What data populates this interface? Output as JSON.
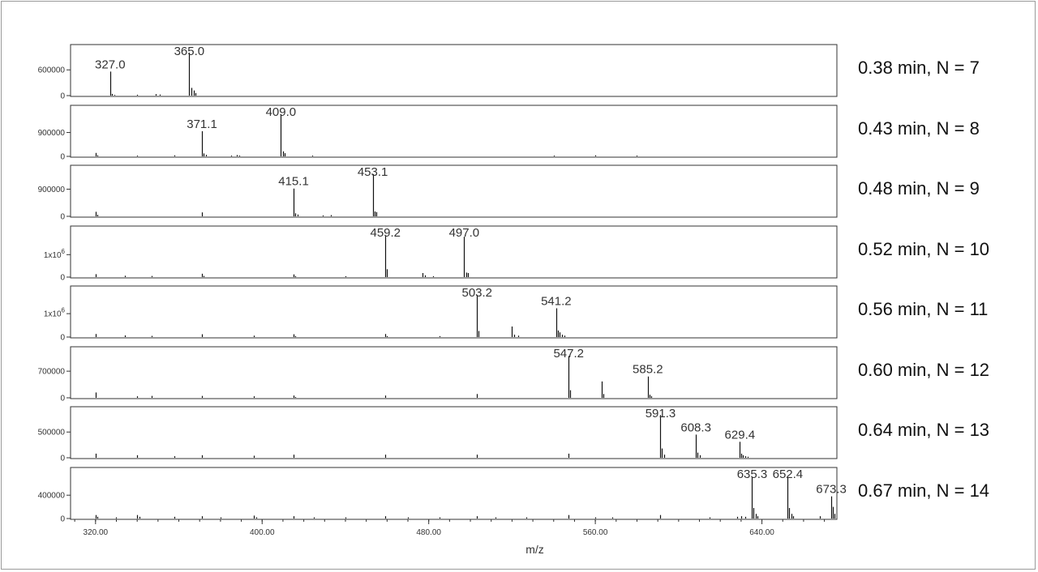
{
  "chart_data": {
    "type": "bar",
    "xlabel": "m/z",
    "xlim": [
      308,
      676
    ],
    "x_ticks": [
      "320.00",
      "400.00",
      "480.00",
      "560.00",
      "640.00"
    ],
    "x_tick_values": [
      320,
      400,
      480,
      560,
      640
    ],
    "panels": [
      {
        "annotation": "0.38 min, N = 7",
        "y_ticks": [
          {
            "value": 0,
            "label": "0"
          },
          {
            "value": 600000,
            "label": "600000"
          }
        ],
        "ymax": 1020000,
        "peak_labels": [
          {
            "x": 327.0,
            "label": "327.0"
          },
          {
            "x": 365.0,
            "label": "365.0"
          }
        ],
        "peaks": [
          [
            327.0,
            560000
          ],
          [
            328.0,
            40000
          ],
          [
            329.0,
            15000
          ],
          [
            340.0,
            20000
          ],
          [
            349.0,
            35000
          ],
          [
            351.0,
            25000
          ],
          [
            365.0,
            1000000
          ],
          [
            366.0,
            180000
          ],
          [
            367.0,
            120000
          ],
          [
            368.0,
            60000
          ]
        ]
      },
      {
        "annotation": "0.43 min, N = 8",
        "y_ticks": [
          {
            "value": 0,
            "label": "0"
          },
          {
            "value": 900000,
            "label": "900000"
          }
        ],
        "ymax": 1650000,
        "peak_labels": [
          {
            "x": 371.1,
            "label": "371.1"
          },
          {
            "x": 409.0,
            "label": "409.0"
          }
        ],
        "peaks": [
          [
            320.0,
            130000
          ],
          [
            321.0,
            40000
          ],
          [
            340.0,
            30000
          ],
          [
            358.0,
            40000
          ],
          [
            371.1,
            950000
          ],
          [
            372.0,
            110000
          ],
          [
            373.0,
            60000
          ],
          [
            385.0,
            30000
          ],
          [
            388.0,
            50000
          ],
          [
            389.0,
            30000
          ],
          [
            409.0,
            1580000
          ],
          [
            410.0,
            190000
          ],
          [
            411.0,
            120000
          ],
          [
            424.0,
            30000
          ],
          [
            540.0,
            30000
          ],
          [
            560.0,
            40000
          ],
          [
            580.0,
            30000
          ]
        ]
      },
      {
        "annotation": "0.48 min, N = 9",
        "y_ticks": [
          {
            "value": 0,
            "label": "0"
          },
          {
            "value": 900000,
            "label": "900000"
          }
        ],
        "ymax": 1450000,
        "peak_labels": [
          {
            "x": 415.1,
            "label": "415.1"
          },
          {
            "x": 453.1,
            "label": "453.1"
          }
        ],
        "peaks": [
          [
            320.0,
            150000
          ],
          [
            321.0,
            50000
          ],
          [
            371.0,
            130000
          ],
          [
            415.1,
            920000
          ],
          [
            416.0,
            100000
          ],
          [
            417.0,
            60000
          ],
          [
            429.0,
            30000
          ],
          [
            433.0,
            40000
          ],
          [
            453.1,
            1400000
          ],
          [
            454.0,
            160000
          ],
          [
            455.0,
            140000
          ]
        ]
      },
      {
        "annotation": "0.52 min, N = 10",
        "y_ticks": [
          {
            "value": 0,
            "label": "0"
          },
          {
            "value": 1000000,
            "label": "1x10",
            "sup": "6"
          }
        ],
        "ymax": 1950000,
        "peak_labels": [
          {
            "x": 459.2,
            "label": "459.2"
          },
          {
            "x": 497.0,
            "label": "497.0"
          }
        ],
        "peaks": [
          [
            320.0,
            130000
          ],
          [
            334.0,
            60000
          ],
          [
            347.0,
            50000
          ],
          [
            371.0,
            150000
          ],
          [
            372.0,
            50000
          ],
          [
            415.0,
            120000
          ],
          [
            416.0,
            40000
          ],
          [
            440.0,
            40000
          ],
          [
            459.2,
            1850000
          ],
          [
            460.0,
            350000
          ],
          [
            477.0,
            180000
          ],
          [
            478.0,
            80000
          ],
          [
            482.0,
            40000
          ],
          [
            497.0,
            1800000
          ],
          [
            498.0,
            200000
          ],
          [
            499.0,
            180000
          ]
        ]
      },
      {
        "annotation": "0.56 min, N = 11",
        "y_ticks": [
          {
            "value": 0,
            "label": "0"
          },
          {
            "value": 1000000,
            "label": "1x10",
            "sup": "6"
          }
        ],
        "ymax": 1870000,
        "peak_labels": [
          {
            "x": 503.2,
            "label": "503.2"
          },
          {
            "x": 541.2,
            "label": "541.2"
          }
        ],
        "peaks": [
          [
            320.0,
            130000
          ],
          [
            334.0,
            70000
          ],
          [
            347.0,
            50000
          ],
          [
            371.0,
            120000
          ],
          [
            396.0,
            60000
          ],
          [
            415.0,
            120000
          ],
          [
            416.0,
            40000
          ],
          [
            459.0,
            130000
          ],
          [
            460.0,
            40000
          ],
          [
            485.0,
            40000
          ],
          [
            503.2,
            1800000
          ],
          [
            504.0,
            260000
          ],
          [
            520.0,
            450000
          ],
          [
            521.0,
            100000
          ],
          [
            523.0,
            60000
          ],
          [
            541.2,
            1230000
          ],
          [
            542.0,
            280000
          ],
          [
            543.0,
            200000
          ],
          [
            544.0,
            100000
          ],
          [
            545.0,
            60000
          ]
        ]
      },
      {
        "annotation": "0.60 min, N = 12",
        "y_ticks": [
          {
            "value": 0,
            "label": "0"
          },
          {
            "value": 700000,
            "label": "700000"
          }
        ],
        "ymax": 1150000,
        "peak_labels": [
          {
            "x": 547.2,
            "label": "547.2"
          },
          {
            "x": 585.2,
            "label": "585.2"
          }
        ],
        "peaks": [
          [
            320.0,
            140000
          ],
          [
            340.0,
            40000
          ],
          [
            347.0,
            50000
          ],
          [
            371.0,
            50000
          ],
          [
            396.0,
            40000
          ],
          [
            415.0,
            60000
          ],
          [
            416.0,
            20000
          ],
          [
            459.0,
            60000
          ],
          [
            503.0,
            100000
          ],
          [
            547.2,
            1100000
          ],
          [
            548.0,
            200000
          ],
          [
            563.0,
            430000
          ],
          [
            564.0,
            100000
          ],
          [
            585.2,
            560000
          ],
          [
            586.0,
            80000
          ],
          [
            587.0,
            40000
          ]
        ]
      },
      {
        "annotation": "0.64 min, N = 13",
        "y_ticks": [
          {
            "value": 0,
            "label": "0"
          },
          {
            "value": 500000,
            "label": "500000"
          }
        ],
        "ymax": 850000,
        "peak_labels": [
          {
            "x": 591.3,
            "label": "591.3"
          },
          {
            "x": 608.3,
            "label": "608.3"
          },
          {
            "x": 629.4,
            "label": "629.4"
          }
        ],
        "peaks": [
          [
            320.0,
            80000
          ],
          [
            340.0,
            50000
          ],
          [
            358.0,
            30000
          ],
          [
            371.0,
            50000
          ],
          [
            396.0,
            40000
          ],
          [
            415.0,
            60000
          ],
          [
            459.0,
            60000
          ],
          [
            503.0,
            60000
          ],
          [
            547.0,
            80000
          ],
          [
            591.3,
            830000
          ],
          [
            592.0,
            180000
          ],
          [
            593.0,
            60000
          ],
          [
            608.3,
            450000
          ],
          [
            609.0,
            100000
          ],
          [
            610.0,
            50000
          ],
          [
            629.4,
            310000
          ],
          [
            630.0,
            80000
          ],
          [
            631.0,
            50000
          ],
          [
            632.0,
            30000
          ],
          [
            633.0,
            20000
          ]
        ]
      },
      {
        "annotation": "0.67 min, N = 14",
        "y_ticks": [
          {
            "value": 0,
            "label": "0"
          },
          {
            "value": 400000,
            "label": "400000"
          }
        ],
        "ymax": 750000,
        "peak_labels": [
          {
            "x": 635.3,
            "label": "635.3"
          },
          {
            "x": 652.4,
            "label": "652.4"
          },
          {
            "x": 673.3,
            "label": "673.3"
          }
        ],
        "peaks": [
          [
            320.0,
            60000
          ],
          [
            321.0,
            30000
          ],
          [
            330.0,
            20000
          ],
          [
            340.0,
            60000
          ],
          [
            341.0,
            30000
          ],
          [
            358.0,
            30000
          ],
          [
            371.0,
            40000
          ],
          [
            380.0,
            20000
          ],
          [
            396.0,
            50000
          ],
          [
            397.0,
            20000
          ],
          [
            415.0,
            40000
          ],
          [
            425.0,
            20000
          ],
          [
            440.0,
            20000
          ],
          [
            459.0,
            40000
          ],
          [
            470.0,
            20000
          ],
          [
            485.0,
            20000
          ],
          [
            503.0,
            40000
          ],
          [
            512.0,
            20000
          ],
          [
            527.0,
            20000
          ],
          [
            547.0,
            60000
          ],
          [
            560.0,
            20000
          ],
          [
            568.0,
            20000
          ],
          [
            591.0,
            60000
          ],
          [
            615.0,
            20000
          ],
          [
            628.0,
            30000
          ],
          [
            630.0,
            40000
          ],
          [
            632.0,
            30000
          ],
          [
            635.3,
            710000
          ],
          [
            636.0,
            180000
          ],
          [
            637.0,
            80000
          ],
          [
            638.0,
            40000
          ],
          [
            652.4,
            710000
          ],
          [
            653.0,
            180000
          ],
          [
            654.0,
            80000
          ],
          [
            655.0,
            40000
          ],
          [
            668.0,
            40000
          ],
          [
            673.3,
            380000
          ],
          [
            674.0,
            200000
          ],
          [
            675.0,
            80000
          ]
        ]
      }
    ]
  }
}
